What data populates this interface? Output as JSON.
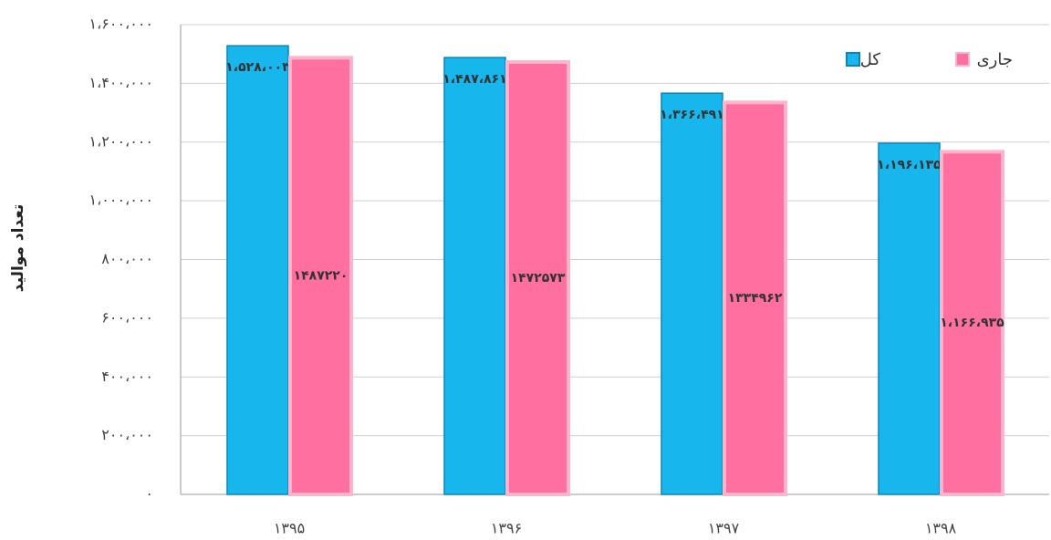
{
  "chart_data": {
    "type": "bar",
    "y_label": "تعداد موالید",
    "categories": [
      "۱۳۹۵",
      "۱۳۹۶",
      "۱۳۹۷",
      "۱۳۹۸"
    ],
    "series": [
      {
        "name": "کل",
        "color": "#17b6ec",
        "values": [
          1528003,
          1487861,
          1366491,
          1196135
        ],
        "value_labels": [
          "۱،۵۲۸،۰۰۳",
          "۱،۴۸۷،۸۶۱",
          "۱،۳۶۶،۴۹۱",
          "۱،۱۹۶،۱۳۵"
        ]
      },
      {
        "name": "جاری",
        "color": "#ff6f9f",
        "values": [
          1487220,
          1472573,
          1334962,
          1166935
        ],
        "value_labels": [
          "۱۴۸۷۲۲۰",
          "۱۴۷۲۵۷۳",
          "۱۳۳۴۹۶۲",
          "۱،۱۶۶،۹۳۵"
        ]
      }
    ],
    "ylim": [
      0,
      1600000
    ],
    "yticks": [
      {
        "value": 0,
        "label": "۰"
      },
      {
        "value": 200000,
        "label": "۲۰۰،۰۰۰"
      },
      {
        "value": 400000,
        "label": "۴۰۰،۰۰۰"
      },
      {
        "value": 600000,
        "label": "۶۰۰،۰۰۰"
      },
      {
        "value": 800000,
        "label": "۸۰۰،۰۰۰"
      },
      {
        "value": 1000000,
        "label": "۱،۰۰۰،۰۰۰"
      },
      {
        "value": 1200000,
        "label": "۱،۲۰۰،۰۰۰"
      },
      {
        "value": 1400000,
        "label": "۱،۴۰۰،۰۰۰"
      },
      {
        "value": 1600000,
        "label": "۱،۶۰۰،۰۰۰"
      }
    ],
    "grid": true,
    "legend": "top-right"
  }
}
